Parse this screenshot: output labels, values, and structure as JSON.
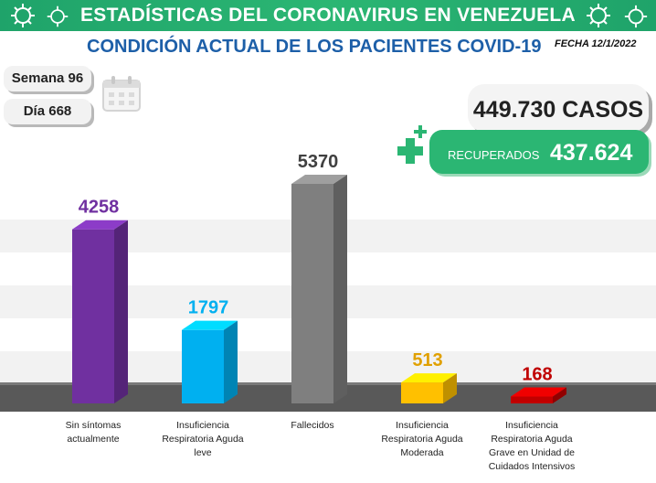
{
  "header": {
    "banner_title": "ESTADÍSTICAS DEL CORONAVIRUS EN VENEZUELA",
    "subtitle": "CONDICIÓN ACTUAL DE LOS PACIENTES COVID-19",
    "date": "FECHA 12/1/2022"
  },
  "week_label": "Semana 96",
  "day_label": "Día 668",
  "cases_label": "449.730 CASOS",
  "recovered": {
    "label": "RECUPERADOS",
    "value": "437.624"
  },
  "colors": {
    "banner": "#2bb673",
    "subtitle": "#1d5fa8",
    "recovered": "#2bb673"
  },
  "icons": [
    "virus-icon",
    "calendar-icon",
    "plus-icon"
  ],
  "chart_data": {
    "type": "bar",
    "categories": [
      "Sin síntomas actualmente",
      "Insuficiencia Respiratoria Aguda leve",
      "Fallecidos",
      "Insuficiencia Respiratoria Aguda Moderada",
      "Insuficiencia Respiratoria Aguda Grave en Unidad de Cuidados Intensivos"
    ],
    "values": [
      4258,
      1797,
      5370,
      513,
      168
    ],
    "data_labels": [
      "4258",
      "1797",
      "5370",
      "513",
      "168"
    ],
    "colors": [
      "#7030a0",
      "#00b0f0",
      "#7f7f7f",
      "#ffc000",
      "#c00000"
    ],
    "label_colors": [
      "#7030a0",
      "#00b0f0",
      "#404040",
      "#e0a000",
      "#c00000"
    ],
    "title": "",
    "xlabel": "",
    "ylabel": "",
    "ylim": [
      0,
      5600
    ],
    "grid": true,
    "legend": "none"
  }
}
